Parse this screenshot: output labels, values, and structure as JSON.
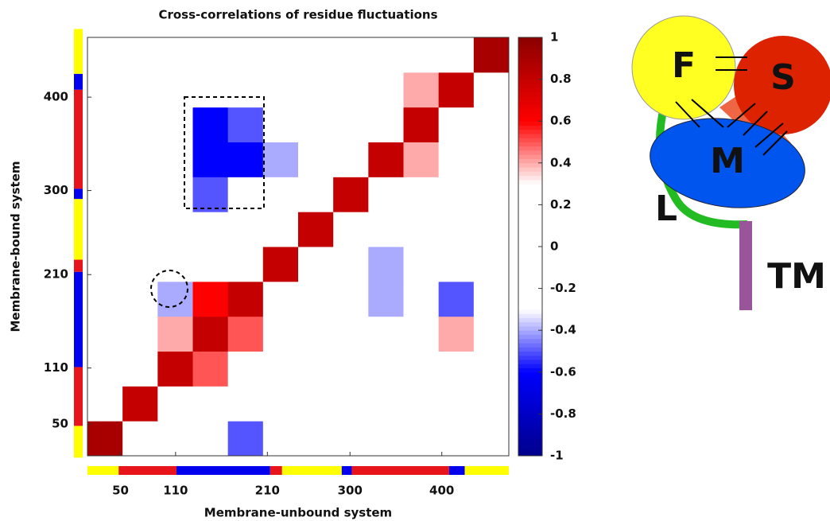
{
  "chart_data": {
    "type": "heatmap",
    "title": "Cross-correlations of residue fluctuations",
    "x_label": "Membrane-unbound system",
    "y_label": "Membrane-bound system",
    "xlim": [
      14,
      473
    ],
    "ylim": [
      16,
      464
    ],
    "xticks": [
      50,
      110,
      210,
      300,
      400
    ],
    "yticks": [
      50,
      110,
      210,
      300,
      400
    ],
    "z": [
      [
        0.9,
        0.3,
        0,
        -0.2,
        -0.5,
        0,
        0,
        0,
        0,
        0.2,
        0,
        0
      ],
      [
        0.3,
        0.8,
        0.2,
        0,
        0,
        0,
        0,
        0,
        0,
        0,
        0,
        0.2
      ],
      [
        0,
        0.2,
        0.8,
        0.5,
        0,
        0,
        0,
        0,
        0,
        0,
        0,
        0
      ],
      [
        0,
        0,
        0.4,
        0.8,
        0.5,
        -0.2,
        0,
        0,
        0,
        0,
        0.4,
        -0.3
      ],
      [
        0,
        0,
        -0.4,
        0.6,
        0.8,
        0,
        0,
        0,
        -0.4,
        -0.2,
        -0.5,
        0
      ],
      [
        0,
        0,
        -0.3,
        0,
        0,
        0.8,
        0,
        -0.3,
        -0.4,
        0,
        0,
        0
      ],
      [
        0.3,
        0,
        0.2,
        0,
        0,
        0,
        0.8,
        0,
        0,
        0,
        0,
        0
      ],
      [
        0,
        -0.3,
        0,
        -0.5,
        -0.3,
        0,
        0,
        0.8,
        0,
        0,
        0,
        0
      ],
      [
        0,
        0,
        0.2,
        -0.6,
        -0.6,
        -0.4,
        0,
        0,
        0.8,
        0.4,
        0,
        0
      ],
      [
        0,
        -0.2,
        0.3,
        -0.6,
        -0.5,
        0,
        0,
        0,
        0.3,
        0.8,
        0,
        0
      ],
      [
        0,
        0,
        0,
        -0.3,
        -0.2,
        0,
        0,
        0,
        0,
        0.4,
        0.8,
        0
      ],
      [
        0,
        0.3,
        0,
        0,
        0,
        0,
        0,
        0,
        0,
        0,
        0,
        0.9
      ]
    ],
    "colorbar_lim": [
      -1,
      1
    ],
    "colorbar_ticks": [
      -1,
      -0.8,
      -0.6,
      -0.4,
      -0.2,
      0,
      0.2,
      0.4,
      0.6,
      0.8,
      1
    ],
    "colorscale": [
      [
        -1,
        "#00008b"
      ],
      [
        -0.6,
        "#0000ff"
      ],
      [
        -0.3,
        "#ffffff"
      ],
      [
        0.3,
        "#ffffff"
      ],
      [
        0.6,
        "#ff0000"
      ],
      [
        1,
        "#8b0000"
      ]
    ],
    "domain_segments": [
      {
        "start": 14,
        "end": 48,
        "color": "#ffff00"
      },
      {
        "start": 48,
        "end": 111,
        "color": "#e8141c"
      },
      {
        "start": 111,
        "end": 213,
        "color": "#0000ee"
      },
      {
        "start": 213,
        "end": 226,
        "color": "#e8141c"
      },
      {
        "start": 226,
        "end": 291,
        "color": "#ffff00"
      },
      {
        "start": 291,
        "end": 302,
        "color": "#0000ee"
      },
      {
        "start": 302,
        "end": 408,
        "color": "#e8141c"
      },
      {
        "start": 408,
        "end": 425,
        "color": "#0000ee"
      },
      {
        "start": 425,
        "end": 473,
        "color": "#ffff00"
      }
    ]
  },
  "diagram": {
    "labels": [
      "F",
      "S",
      "M",
      "L",
      "TM"
    ]
  }
}
